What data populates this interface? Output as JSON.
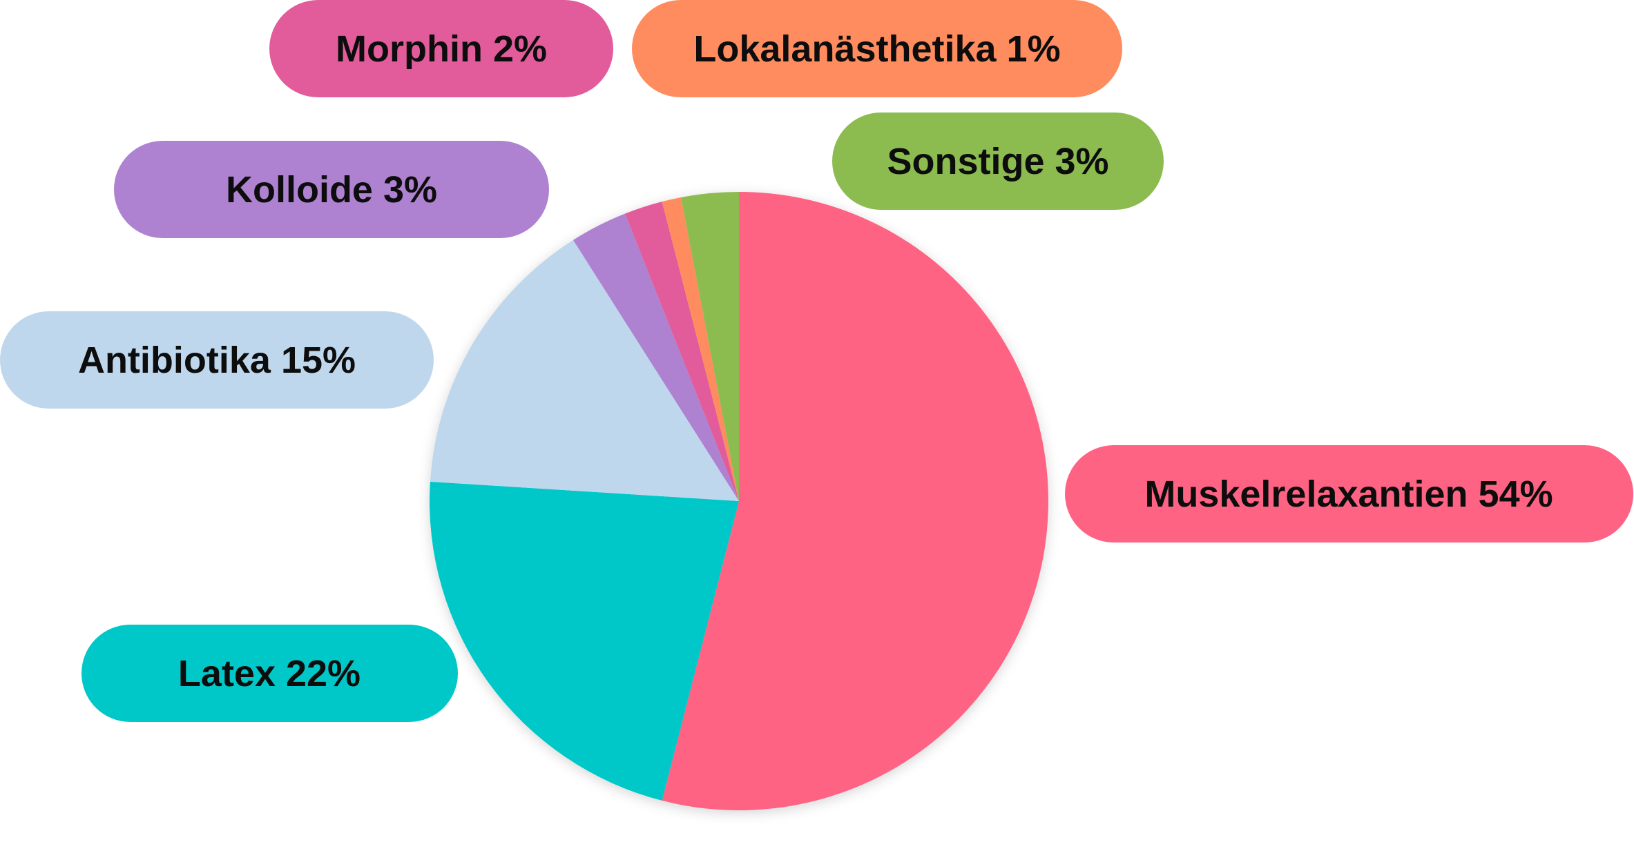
{
  "chart_data": {
    "type": "pie",
    "start_angle_deg": 0,
    "direction": "clockwise",
    "slices": [
      {
        "label": "Muskelrelaxantien 54%",
        "value": 54,
        "color": "#FF6384"
      },
      {
        "label": "Latex 22%",
        "value": 22,
        "color": "#00C8C8"
      },
      {
        "label": "Antibiotika 15%",
        "value": 15,
        "color": "#BFD7ED"
      },
      {
        "label": "Kolloide 3%",
        "value": 3,
        "color": "#AE82D0"
      },
      {
        "label": "Morphin 2%",
        "value": 2,
        "color": "#E25C9C"
      },
      {
        "label": "Lokalanästhetika 1%",
        "value": 1,
        "color": "#FF8C5F"
      },
      {
        "label": "Sonstige 3%",
        "value": 3,
        "color": "#8CBC50"
      }
    ],
    "legend": "labels in colored pills around the pie"
  }
}
